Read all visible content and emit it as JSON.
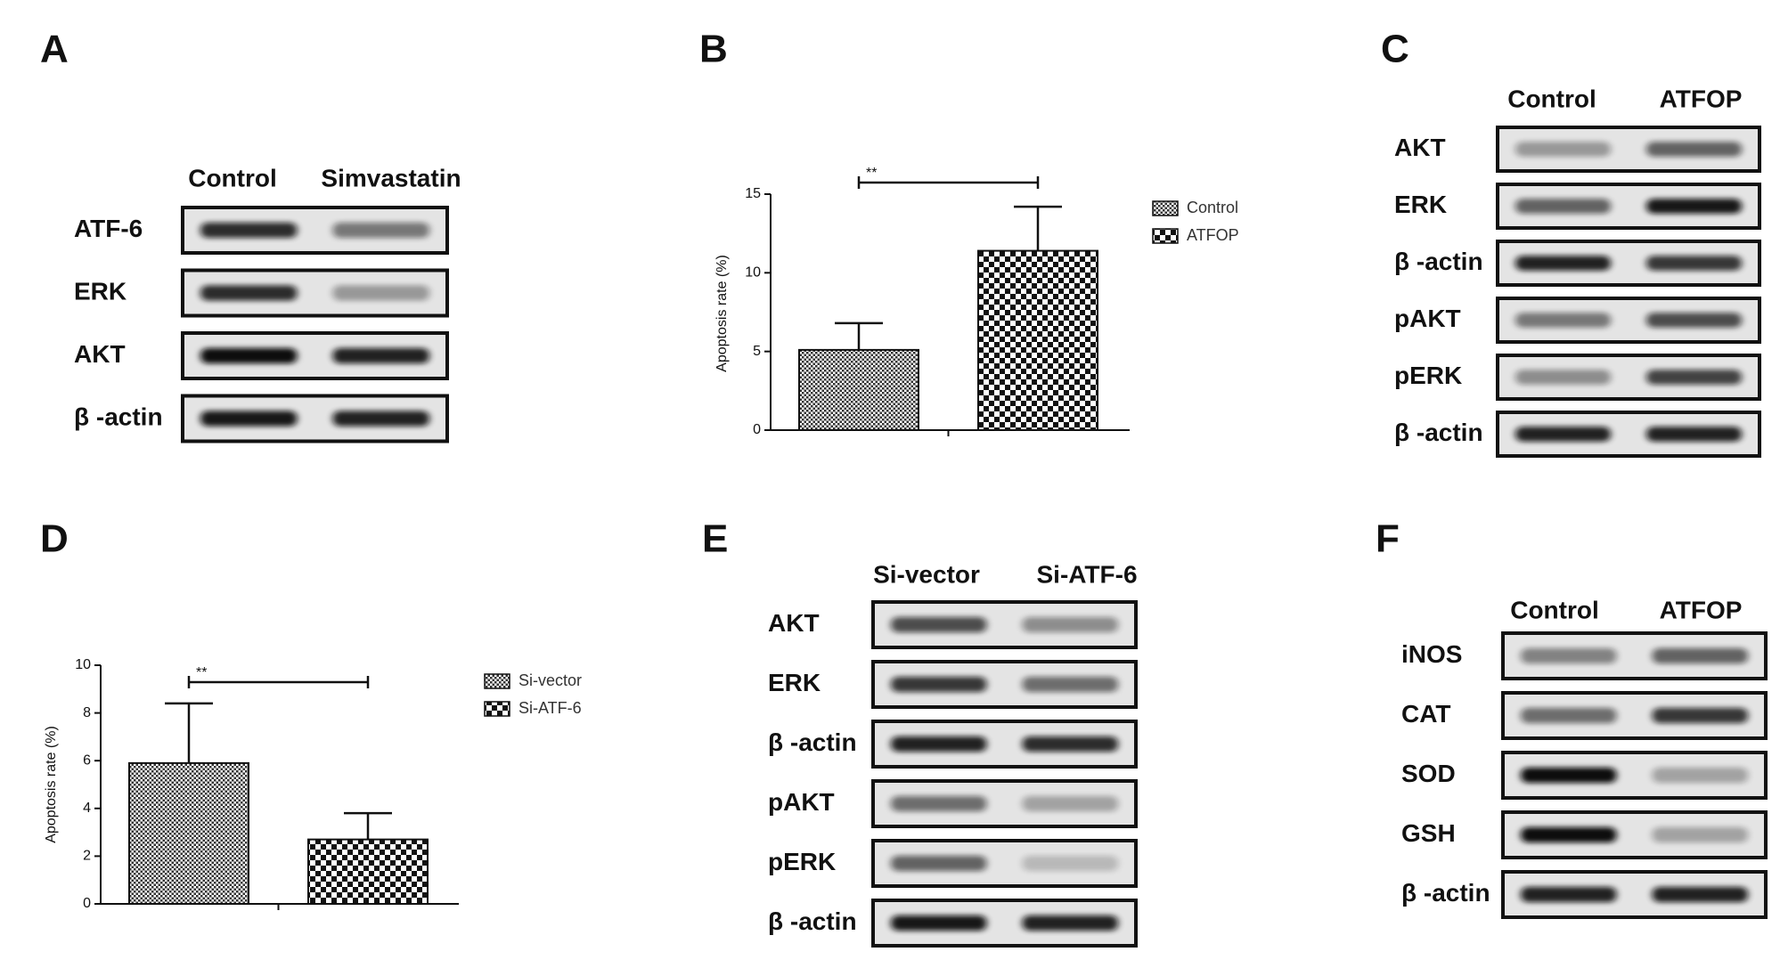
{
  "panels": [
    {
      "letter": "A",
      "lanes": [
        "Control",
        "Simvastatin"
      ],
      "rows": [
        "ATF-6",
        "ERK",
        "AKT",
        "β -actin"
      ]
    },
    {
      "letter": "C",
      "lanes": [
        "Control",
        "ATFOP"
      ],
      "rows": [
        "AKT",
        "ERK",
        "β -actin",
        "pAKT",
        "pERK",
        "β -actin"
      ]
    },
    {
      "letter": "E",
      "lanes": [
        "Si-vector",
        "Si-ATF-6"
      ],
      "rows": [
        "AKT",
        "ERK",
        "β -actin",
        "pAKT",
        "pERK",
        "β -actin"
      ]
    },
    {
      "letter": "F",
      "lanes": [
        "Control",
        "ATFOP"
      ],
      "rows": [
        "iNOS",
        "CAT",
        "SOD",
        "GSH",
        "β -actin"
      ]
    }
  ],
  "chart_data": [
    {
      "type": "bar",
      "letter": "B",
      "y_label": "Apoptosis rate (%)",
      "categories": [
        "Control",
        "ATFOP"
      ],
      "values": [
        5.1,
        11.4
      ],
      "errors": [
        1.7,
        2.8
      ],
      "annotation": "**",
      "ylim": [
        0,
        15
      ],
      "yticks": [
        0,
        5,
        10,
        15
      ]
    },
    {
      "type": "bar",
      "letter": "D",
      "y_label": "Apoptosis rate (%)",
      "categories": [
        "Si-vector",
        "Si-ATF-6"
      ],
      "values": [
        5.9,
        2.7
      ],
      "errors": [
        2.5,
        1.1
      ],
      "annotation": "**",
      "ylim": [
        0,
        10
      ],
      "yticks": [
        0,
        2,
        4,
        6,
        8,
        10
      ]
    }
  ]
}
